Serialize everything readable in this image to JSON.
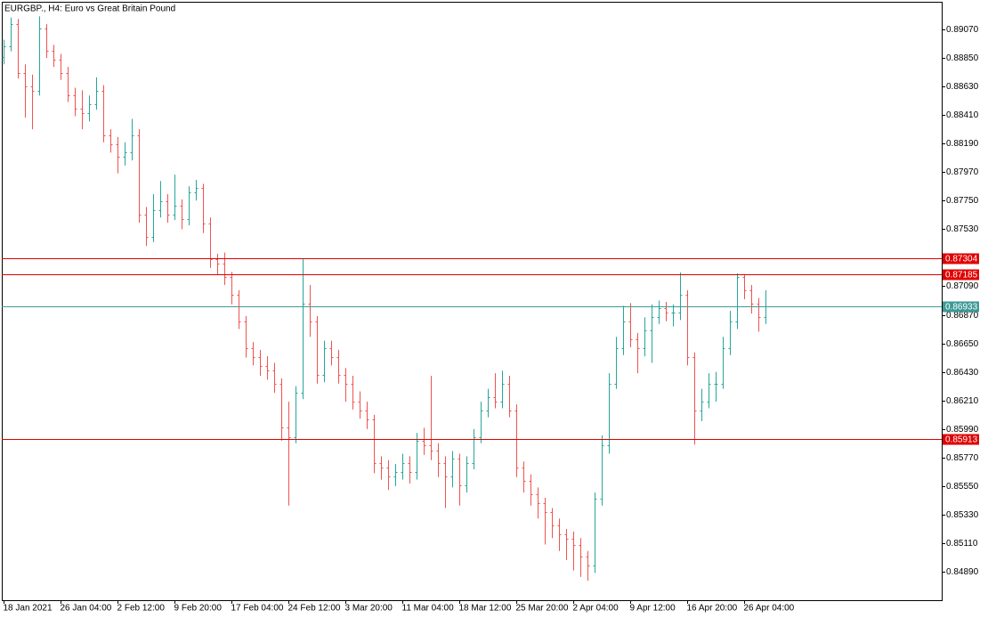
{
  "chart_data": {
    "type": "ohlc",
    "title": "EURGBP., H4:  Euro vs Great Britain Pound",
    "up_color": "#26a69a",
    "down_color": "#ef5350",
    "grid": false,
    "xlim": [
      -0.25,
      131.75
    ],
    "ylim": [
      0.84671,
      0.89282
    ],
    "xticks": [
      {
        "value": 0,
        "label": "18 Jan 2021"
      },
      {
        "value": 8,
        "label": "26 Jan 04:00"
      },
      {
        "value": 16,
        "label": "2 Feb 12:00"
      },
      {
        "value": 24,
        "label": "9 Feb 20:00"
      },
      {
        "value": 32,
        "label": "17 Feb 04:00"
      },
      {
        "value": 40,
        "label": "24 Feb 12:00"
      },
      {
        "value": 48,
        "label": "3 Mar 20:00"
      },
      {
        "value": 56,
        "label": "11 Mar 04:00"
      },
      {
        "value": 64,
        "label": "18 Mar 12:00"
      },
      {
        "value": 72,
        "label": "25 Mar 20:00"
      },
      {
        "value": 80,
        "label": "2 Apr 04:00"
      },
      {
        "value": 88,
        "label": "9 Apr 12:00"
      },
      {
        "value": 96,
        "label": "16 Apr 20:00"
      },
      {
        "value": 104,
        "label": "26 Apr 04:00"
      }
    ],
    "yticks": [
      {
        "value": 0.8907,
        "label": "0.89070"
      },
      {
        "value": 0.8885,
        "label": "0.88850"
      },
      {
        "value": 0.8863,
        "label": "0.88630"
      },
      {
        "value": 0.8841,
        "label": "0.88410"
      },
      {
        "value": 0.8819,
        "label": "0.88190"
      },
      {
        "value": 0.8797,
        "label": "0.87970"
      },
      {
        "value": 0.8775,
        "label": "0.87750"
      },
      {
        "value": 0.8753,
        "label": "0.87530"
      },
      {
        "value": 0.8709,
        "label": "0.87090"
      },
      {
        "value": 0.8687,
        "label": "0.86870"
      },
      {
        "value": 0.8665,
        "label": "0.86650"
      },
      {
        "value": 0.8643,
        "label": "0.86430"
      },
      {
        "value": 0.8621,
        "label": "0.86210"
      },
      {
        "value": 0.8599,
        "label": "0.85990"
      },
      {
        "value": 0.8577,
        "label": "0.85770"
      },
      {
        "value": 0.8555,
        "label": "0.85550"
      },
      {
        "value": 0.8533,
        "label": "0.85330"
      },
      {
        "value": 0.8511,
        "label": "0.85110"
      },
      {
        "value": 0.8489,
        "label": "0.84890"
      }
    ],
    "levels": [
      {
        "value": 0.87304,
        "label": "0.87304",
        "color": "#e00000"
      },
      {
        "value": 0.87185,
        "label": "0.87185",
        "color": "#e00000"
      },
      {
        "value": 0.86933,
        "label": "0.86933",
        "color": "#3d9a96"
      },
      {
        "value": 0.85913,
        "label": "0.85913",
        "color": "#e00000"
      }
    ],
    "open": [
      0.8886,
      0.8894,
      0.89111,
      0.88735,
      0.88632,
      0.88598,
      0.89077,
      0.88906,
      0.88837,
      0.88735,
      0.88564,
      0.88461,
      0.88427,
      0.88495,
      0.88598,
      0.88256,
      0.88187,
      0.88085,
      0.88119,
      0.88256,
      0.8764,
      0.87469,
      0.87674,
      0.87743,
      0.8764,
      0.87709,
      0.87606,
      0.87811,
      0.87846,
      0.87572,
      0.87298,
      0.87264,
      0.87161,
      0.87025,
      0.86819,
      0.86614,
      0.86546,
      0.86478,
      0.86443,
      0.86341,
      0.85999,
      0.8593,
      0.86272,
      0.86956,
      0.86819,
      0.86409,
      0.86614,
      0.86546,
      0.86409,
      0.86341,
      0.86204,
      0.86135,
      0.86067,
      0.85725,
      0.8569,
      0.85622,
      0.85656,
      0.85725,
      0.85656,
      0.85896,
      0.85862,
      0.85827,
      0.85725,
      0.85622,
      0.85759,
      0.85554,
      0.85725,
      0.8593,
      0.86135,
      0.86238,
      0.86204,
      0.86341,
      0.86135,
      0.8569,
      0.85588,
      0.85485,
      0.85417,
      0.85348,
      0.85245,
      0.85177,
      0.85143,
      0.85095,
      0.85006,
      0.84938,
      0.85451,
      0.85862,
      0.86341,
      0.86614,
      0.86819,
      0.86682,
      0.86614,
      0.86751,
      0.86853,
      0.86922,
      0.86888,
      0.86888,
      0.87025,
      0.86546,
      0.86135,
      0.86204,
      0.86341,
      0.86341,
      0.86614,
      0.86819,
      0.87161,
      0.87059,
      0.86956,
      0.86853
    ],
    "high": [
      0.8899,
      0.8916,
      0.8915,
      0.888,
      0.8872,
      0.8917,
      0.8911,
      0.8895,
      0.8888,
      0.8878,
      0.8862,
      0.886,
      0.8856,
      0.887,
      0.8864,
      0.883,
      0.8824,
      0.882,
      0.8838,
      0.883,
      0.877,
      0.878,
      0.879,
      0.878,
      0.8795,
      0.8776,
      0.8786,
      0.8791,
      0.8788,
      0.8762,
      0.8734,
      0.8735,
      0.872,
      0.8706,
      0.8686,
      0.8666,
      0.866,
      0.8655,
      0.865,
      0.8638,
      0.862,
      0.8632,
      0.87304,
      0.871,
      0.8686,
      0.8667,
      0.8667,
      0.866,
      0.8646,
      0.864,
      0.8628,
      0.862,
      0.861,
      0.8578,
      0.8575,
      0.8572,
      0.858,
      0.8578,
      0.8596,
      0.86,
      0.864,
      0.8588,
      0.8578,
      0.8582,
      0.858,
      0.8578,
      0.8599,
      0.862,
      0.863,
      0.8642,
      0.8644,
      0.864,
      0.8618,
      0.8574,
      0.8564,
      0.8554,
      0.8546,
      0.8538,
      0.853,
      0.8522,
      0.852,
      0.8515,
      0.8505,
      0.855,
      0.8594,
      0.8642,
      0.867,
      0.8694,
      0.8696,
      0.8673,
      0.8685,
      0.8695,
      0.8698,
      0.8697,
      0.8695,
      0.87196,
      0.8706,
      0.8658,
      0.863,
      0.8642,
      0.8643,
      0.867,
      0.869,
      0.8719,
      0.8718,
      0.871,
      0.87,
      0.8706
    ],
    "low": [
      0.888,
      0.889,
      0.8869,
      0.8839,
      0.883,
      0.8856,
      0.8885,
      0.8878,
      0.8868,
      0.8851,
      0.884,
      0.883,
      0.8836,
      0.8845,
      0.882,
      0.8812,
      0.8796,
      0.8802,
      0.8806,
      0.8758,
      0.874,
      0.8743,
      0.8762,
      0.8758,
      0.876,
      0.8753,
      0.8756,
      0.8775,
      0.875,
      0.8723,
      0.8718,
      0.871,
      0.8695,
      0.8676,
      0.8654,
      0.8648,
      0.864,
      0.8637,
      0.8627,
      0.859,
      0.854,
      0.8588,
      0.8622,
      0.867,
      0.8634,
      0.8635,
      0.8648,
      0.8634,
      0.862,
      0.8614,
      0.8607,
      0.8599,
      0.8565,
      0.856,
      0.8552,
      0.8555,
      0.856,
      0.8557,
      0.856,
      0.8579,
      0.8575,
      0.8562,
      0.8538,
      0.8554,
      0.854,
      0.855,
      0.8568,
      0.8588,
      0.8608,
      0.8615,
      0.8615,
      0.8608,
      0.8562,
      0.855,
      0.854,
      0.853,
      0.851,
      0.8515,
      0.8505,
      0.8498,
      0.849,
      0.8485,
      0.8482,
      0.8488,
      0.854,
      0.858,
      0.863,
      0.8656,
      0.8662,
      0.8642,
      0.8655,
      0.865,
      0.868,
      0.8682,
      0.8678,
      0.8683,
      0.8648,
      0.8587,
      0.8605,
      0.8615,
      0.862,
      0.863,
      0.8656,
      0.8676,
      0.8699,
      0.8688,
      0.8674,
      0.868
    ],
    "close": [
      0.8894,
      0.89111,
      0.88735,
      0.88632,
      0.88598,
      0.89077,
      0.88906,
      0.88837,
      0.88735,
      0.88564,
      0.88461,
      0.88427,
      0.88495,
      0.88598,
      0.88256,
      0.88187,
      0.88085,
      0.88119,
      0.88256,
      0.8764,
      0.87469,
      0.87674,
      0.87743,
      0.8764,
      0.87709,
      0.87606,
      0.87811,
      0.87846,
      0.87572,
      0.87298,
      0.87264,
      0.87161,
      0.87025,
      0.86819,
      0.86614,
      0.86546,
      0.86478,
      0.86443,
      0.86341,
      0.85999,
      0.8593,
      0.86272,
      0.86956,
      0.86819,
      0.86409,
      0.86614,
      0.86546,
      0.86409,
      0.86341,
      0.86204,
      0.86135,
      0.86067,
      0.85725,
      0.8569,
      0.85622,
      0.85656,
      0.85725,
      0.85656,
      0.85896,
      0.85862,
      0.85827,
      0.85725,
      0.85622,
      0.85759,
      0.85554,
      0.85725,
      0.8593,
      0.86135,
      0.86238,
      0.86204,
      0.86341,
      0.86135,
      0.8569,
      0.85588,
      0.85485,
      0.85417,
      0.85348,
      0.85245,
      0.85177,
      0.85143,
      0.85095,
      0.85006,
      0.84938,
      0.85451,
      0.85862,
      0.86341,
      0.86614,
      0.86819,
      0.86682,
      0.86614,
      0.86751,
      0.86853,
      0.86922,
      0.86888,
      0.86888,
      0.87025,
      0.86546,
      0.86135,
      0.86204,
      0.86341,
      0.86341,
      0.86614,
      0.86819,
      0.87161,
      0.87059,
      0.86956,
      0.86853,
      0.86933
    ]
  }
}
